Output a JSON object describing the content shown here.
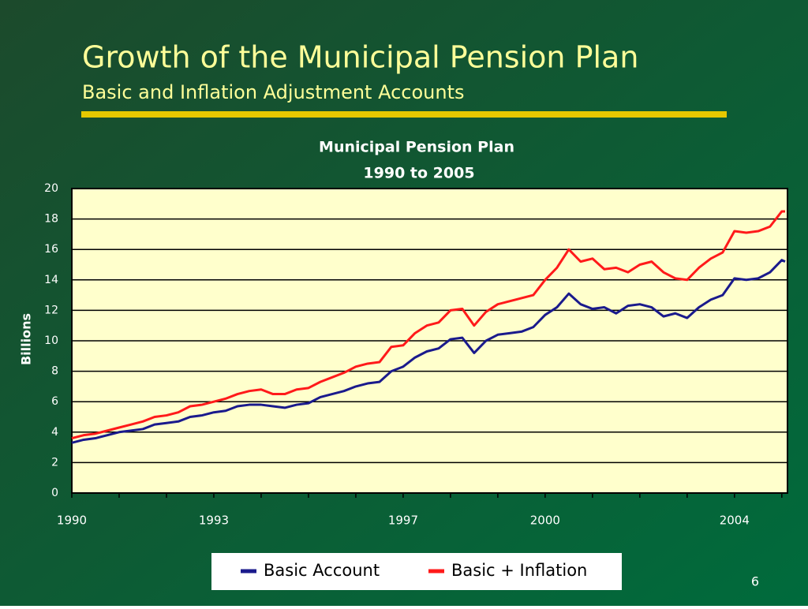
{
  "slide": {
    "title": "Growth of the Municipal Pension Plan",
    "subtitle": "Basic and Inflation Adjustment Accounts",
    "page_number": "6"
  },
  "chart_data": {
    "type": "line",
    "title": [
      "Municipal Pension Plan",
      "1990 to 2005"
    ],
    "ylabel": "Billions",
    "x": [
      1990,
      1990.25,
      1990.5,
      1990.75,
      1991,
      1991.25,
      1991.5,
      1991.75,
      1992,
      1992.25,
      1992.5,
      1992.75,
      1993,
      1993.25,
      1993.5,
      1993.75,
      1994,
      1994.25,
      1994.5,
      1994.75,
      1995,
      1995.25,
      1995.5,
      1995.75,
      1996,
      1996.25,
      1996.5,
      1996.75,
      1997,
      1997.25,
      1997.5,
      1997.75,
      1998,
      1998.25,
      1998.5,
      1998.75,
      1999,
      1999.25,
      1999.5,
      1999.75,
      2000,
      2000.25,
      2000.5,
      2000.75,
      2001,
      2001.25,
      2001.5,
      2001.75,
      2002,
      2002.25,
      2002.5,
      2002.75,
      2003,
      2003.25,
      2003.5,
      2003.75,
      2004,
      2004.25,
      2004.5,
      2004.75,
      2005,
      2005.07
    ],
    "series": [
      {
        "name": "Basic Account",
        "color": "#1a1a8c",
        "values": [
          3.3,
          3.5,
          3.6,
          3.8,
          4.0,
          4.1,
          4.2,
          4.5,
          4.6,
          4.7,
          5.0,
          5.1,
          5.3,
          5.4,
          5.7,
          5.8,
          5.8,
          5.7,
          5.6,
          5.8,
          5.9,
          6.3,
          6.5,
          6.7,
          7.0,
          7.2,
          7.3,
          8.0,
          8.3,
          8.9,
          9.3,
          9.5,
          10.1,
          10.2,
          9.2,
          10.0,
          10.4,
          10.5,
          10.6,
          10.9,
          11.7,
          12.2,
          13.1,
          12.4,
          12.1,
          12.2,
          11.8,
          12.3,
          12.4,
          12.2,
          11.6,
          11.8,
          11.5,
          12.2,
          12.7,
          13.0,
          14.1,
          14.0,
          14.1,
          14.5,
          15.3,
          15.2
        ]
      },
      {
        "name": "Basic + Inflation",
        "color": "#ff1a1a",
        "values": [
          3.6,
          3.8,
          3.9,
          4.1,
          4.3,
          4.5,
          4.7,
          5.0,
          5.1,
          5.3,
          5.7,
          5.8,
          6.0,
          6.2,
          6.5,
          6.7,
          6.8,
          6.5,
          6.5,
          6.8,
          6.9,
          7.3,
          7.6,
          7.9,
          8.3,
          8.5,
          8.6,
          9.6,
          9.7,
          10.5,
          11.0,
          11.2,
          12.0,
          12.1,
          11.0,
          11.9,
          12.4,
          12.6,
          12.8,
          13.0,
          14.0,
          14.8,
          16.0,
          15.2,
          15.4,
          14.7,
          14.8,
          14.5,
          15.0,
          15.2,
          14.5,
          14.1,
          14.0,
          14.8,
          15.4,
          15.8,
          17.2,
          17.1,
          17.2,
          17.5,
          18.5,
          18.5
        ]
      }
    ],
    "xlim": [
      1990,
      2005.12
    ],
    "xticks": [
      1990,
      1993,
      1997,
      2000,
      2004
    ],
    "xminor_ticks": [
      1991,
      1992,
      1994,
      1995,
      1996,
      1998,
      1999,
      2001,
      2002,
      2003,
      2005
    ],
    "ylim": [
      0,
      20
    ],
    "yticks": [
      0,
      2,
      4,
      6,
      8,
      10,
      12,
      14,
      16,
      18,
      20
    ],
    "grid": true,
    "legend": "bottom"
  }
}
